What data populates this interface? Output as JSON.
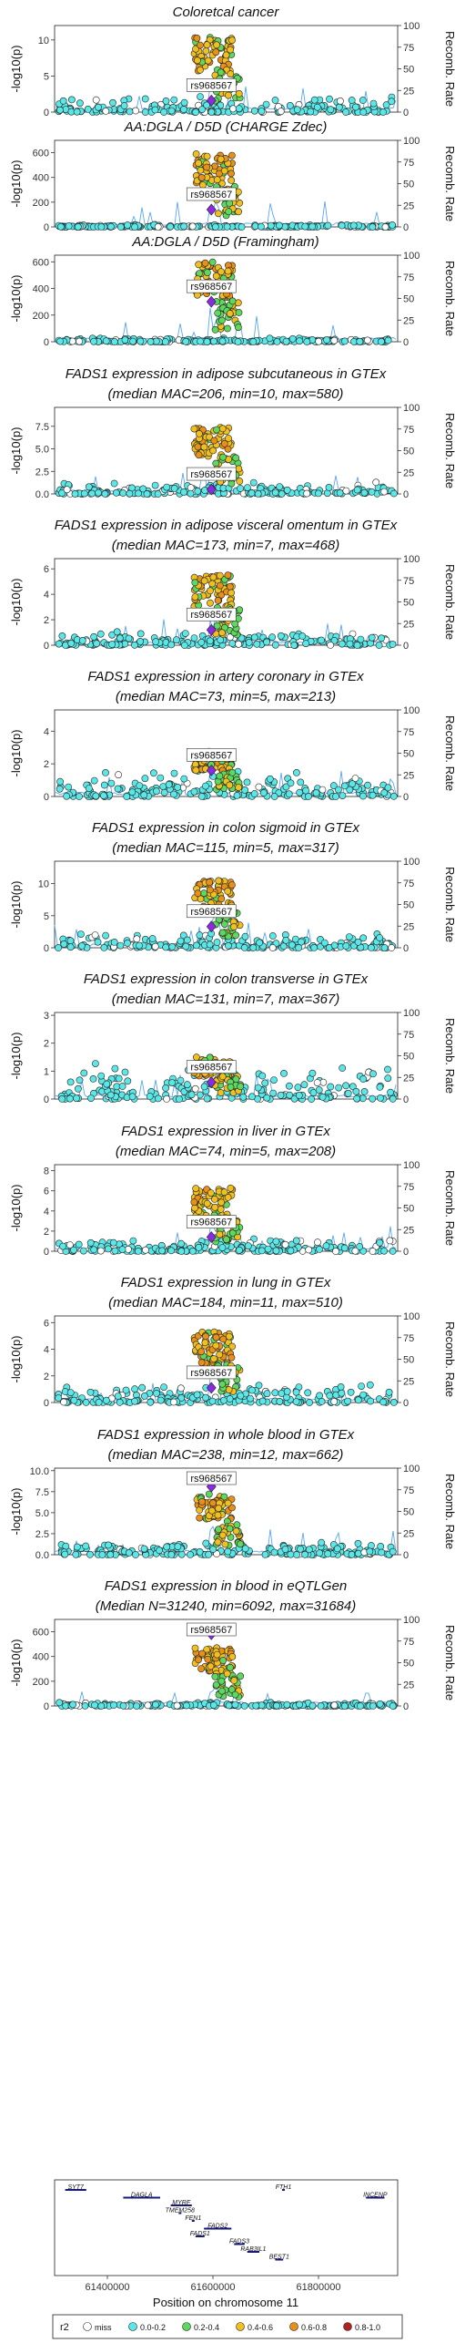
{
  "chart_data": {
    "type": "scatter",
    "x_range": [
      61300000,
      61950000
    ],
    "recomb_ticks": [
      0,
      25,
      50,
      75,
      100
    ],
    "y_axis_label": "-log10(p)",
    "y2_axis_label": "Recomb. Rate",
    "lead_snp_label": "rs968567",
    "panels": [
      {
        "title": [
          "Coloretcal cancer"
        ],
        "yticks": [
          0,
          5,
          10
        ],
        "ymax": 12,
        "peak": 10.4,
        "lead": 1.6,
        "bg": 2.2
      },
      {
        "title": [
          "AA:DGLA / D5D (CHARGE Zdec)"
        ],
        "yticks": [
          0,
          200,
          400,
          600
        ],
        "ymax": 700,
        "peak": 600,
        "lead": 140,
        "bg": 20
      },
      {
        "title": [
          "AA:DGLA / D5D (Framingham)"
        ],
        "yticks": [
          0,
          200,
          400,
          600
        ],
        "ymax": 650,
        "peak": 600,
        "lead": 300,
        "bg": 30
      },
      {
        "title": [
          "FADS1 expression in adipose subcutaneous in GTEx",
          "(median MAC=206, min=10, max=580)"
        ],
        "yticks": [
          0.0,
          2.5,
          5.0,
          7.5
        ],
        "ymax": 9.6,
        "peak": 7.5,
        "lead": 0.5,
        "bg": 1.3
      },
      {
        "title": [
          "FADS1 expression in adipose visceral omentum in GTEx",
          "(median MAC=173, min=7, max=468)"
        ],
        "yticks": [
          0,
          2,
          4,
          6
        ],
        "ymax": 6.8,
        "peak": 5.5,
        "lead": 1.2,
        "bg": 1.2
      },
      {
        "title": [
          "FADS1 expression in artery coronary in GTEx",
          "(median MAC=73, min=5, max=213)"
        ],
        "yticks": [
          0,
          2,
          4
        ],
        "ymax": 5.3,
        "peak": 2.8,
        "lead": 1.6,
        "bg": 1.6
      },
      {
        "title": [
          "FADS1 expression in colon sigmoid in GTEx",
          "(median MAC=115, min=5, max=317)"
        ],
        "yticks": [
          0,
          5,
          10
        ],
        "ymax": 13.5,
        "peak": 10.5,
        "lead": 3.3,
        "bg": 2.5
      },
      {
        "title": [
          "FADS1 expression in colon transverse in GTEx",
          "(median MAC=131, min=7, max=367)"
        ],
        "yticks": [
          0,
          1,
          2,
          3
        ],
        "ymax": 3.1,
        "peak": 1.5,
        "lead": 0.6,
        "bg": 1.5
      },
      {
        "title": [
          "FADS1 expression in liver in GTEx",
          "(median MAC=74, min=5, max=208)"
        ],
        "yticks": [
          0,
          2,
          4,
          6,
          8
        ],
        "ymax": 8.6,
        "peak": 6.3,
        "lead": 1.4,
        "bg": 1.4
      },
      {
        "title": [
          "FADS1 expression in lung in GTEx",
          "(median MAC=184, min=11, max=510)"
        ],
        "yticks": [
          0,
          2,
          4,
          6
        ],
        "ymax": 6.5,
        "peak": 5.3,
        "lead": 1.1,
        "bg": 1.4
      },
      {
        "title": [
          "FADS1 expression in whole blood in GTEx",
          "(median MAC=238, min=12, max=662)"
        ],
        "yticks": [
          0.0,
          2.5,
          5.0,
          7.5,
          10.0
        ],
        "ymax": 10.3,
        "peak": 7.2,
        "lead": 8.1,
        "bg": 1.8
      },
      {
        "title": [
          "FADS1 expression in blood in eQTLGen",
          "(Median N=31240, min=6092, max=31684)"
        ],
        "yticks": [
          0,
          200,
          400,
          600
        ],
        "ymax": 700,
        "peak": 480,
        "lead": 580,
        "bg": 30
      }
    ],
    "genes": [
      {
        "name": "SYT7",
        "start": 61320000,
        "end": 61360000,
        "row": 0
      },
      {
        "name": "DAGLA",
        "start": 61430000,
        "end": 61500000,
        "row": 1
      },
      {
        "name": "MYRF",
        "start": 61520000,
        "end": 61560000,
        "row": 2
      },
      {
        "name": "TMEM258",
        "start": 61535000,
        "end": 61540000,
        "row": 3
      },
      {
        "name": "FEN1",
        "start": 61560000,
        "end": 61565000,
        "row": 4
      },
      {
        "name": "FADS2",
        "start": 61583000,
        "end": 61635000,
        "row": 5
      },
      {
        "name": "FADS1",
        "start": 61567000,
        "end": 61584000,
        "row": 6
      },
      {
        "name": "FADS3",
        "start": 61640000,
        "end": 61660000,
        "row": 7
      },
      {
        "name": "RAB3IL1",
        "start": 61665000,
        "end": 61688000,
        "row": 8
      },
      {
        "name": "BEST1",
        "start": 61718000,
        "end": 61733000,
        "row": 9
      },
      {
        "name": "FTH1",
        "start": 61731000,
        "end": 61735000,
        "row": 0
      },
      {
        "name": "INCENP",
        "start": 61890000,
        "end": 61925000,
        "row": 1
      }
    ],
    "x_ticks": [
      61400000,
      61600000,
      61800000
    ],
    "x_tick_labels": [
      "61400000",
      "61600000",
      "61800000"
    ],
    "x_axis_label": "Position on chromosome 11",
    "legend": {
      "title": "r2",
      "entries": [
        {
          "label": "miss",
          "color": "#ffffff"
        },
        {
          "label": "0.0-0.2",
          "color": "#5be7e7"
        },
        {
          "label": "0.2-0.4",
          "color": "#5ed85e"
        },
        {
          "label": "0.4-0.6",
          "color": "#f0c020"
        },
        {
          "label": "0.6-0.8",
          "color": "#e8901a"
        },
        {
          "label": "0.8-1.0",
          "color": "#b22222"
        }
      ]
    },
    "lead_color": "#8a2be2",
    "recomb_color": "#5aa6f0"
  }
}
